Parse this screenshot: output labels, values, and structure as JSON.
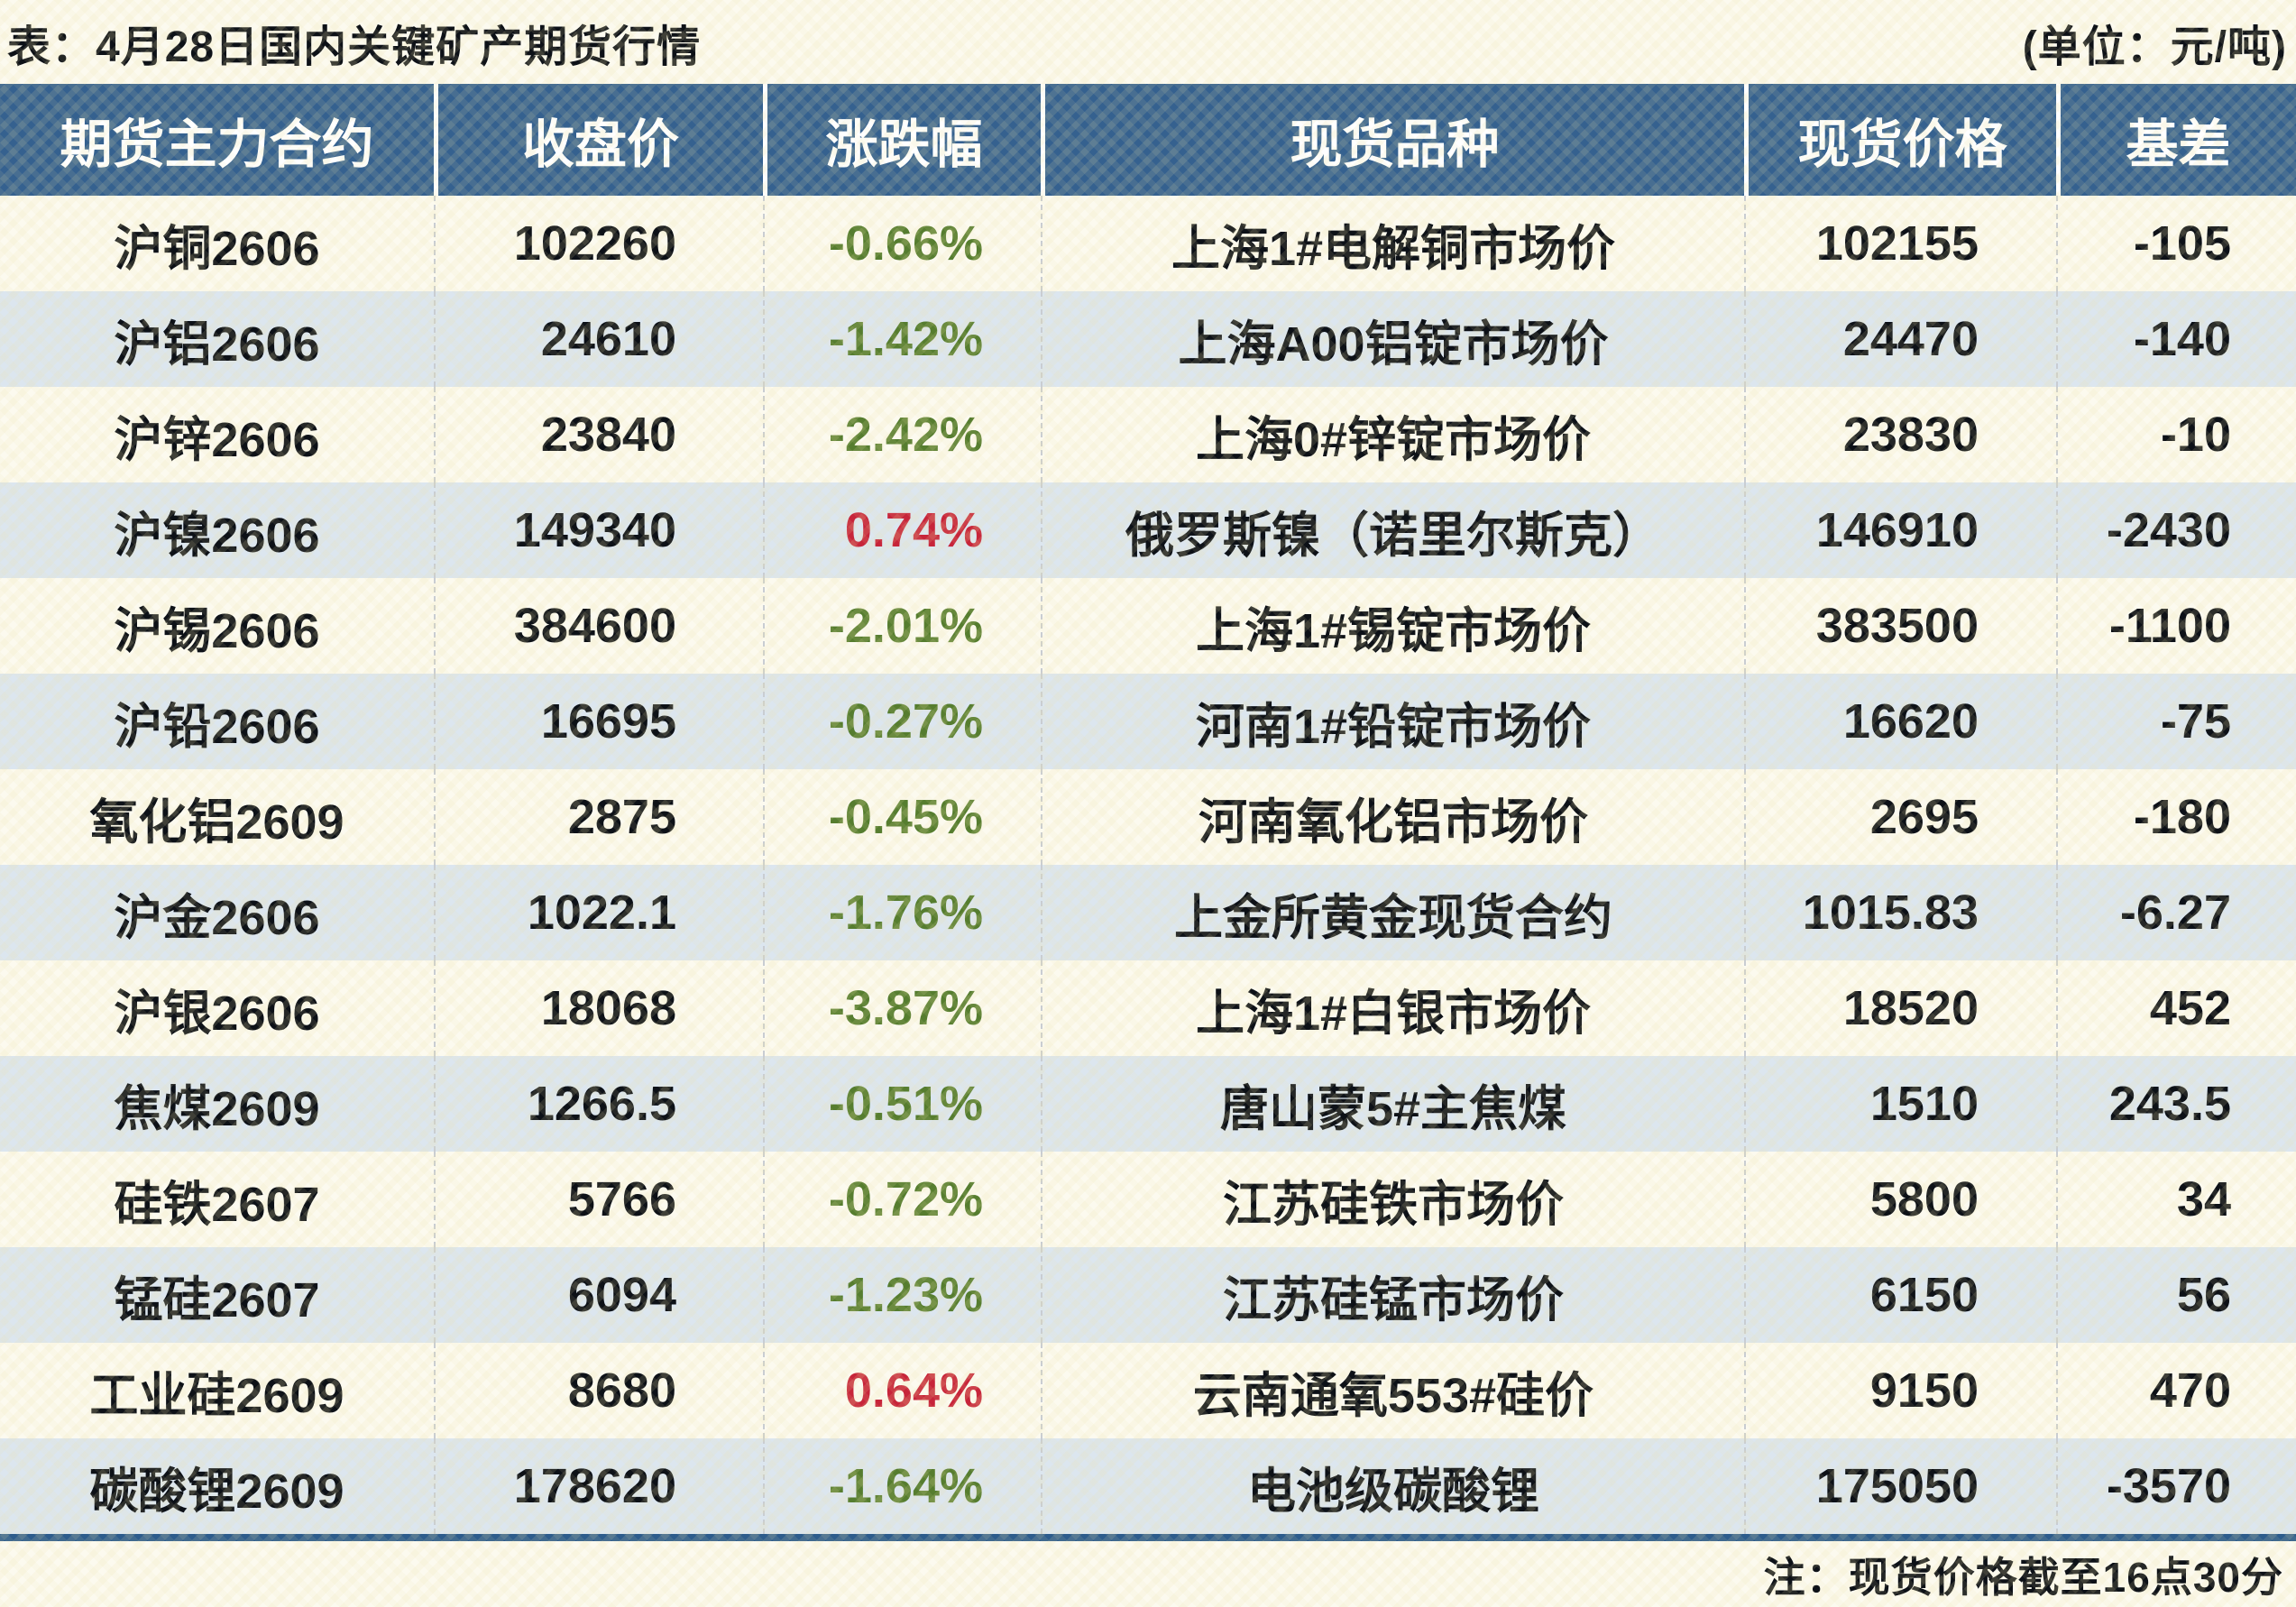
{
  "colors": {
    "page_bg": "#fcfaef",
    "header_bg": "#35618f",
    "row_stripe": "#dce6ef",
    "positive_red": "#c7253a",
    "negative_green": "#567d2f",
    "bottom_rule_blue": "#2d5c8c",
    "text": "#0d1117"
  },
  "chart_data": {
    "type": "table",
    "title": "表：4月28日国内关键矿产期货行情",
    "unit_label": "(单位：元/吨)",
    "footer_note": "注：现货价格截至16点30分",
    "columns": [
      "期货主力合约",
      "收盘价",
      "涨跌幅",
      "现货品种",
      "现货价格",
      "基差"
    ],
    "rows": [
      {
        "contract": "沪铜2606",
        "close": "102260",
        "change": "-0.66%",
        "direction": "down",
        "spot_item": "上海1#电解铜市场价",
        "spot_price": "102155",
        "basis": "-105"
      },
      {
        "contract": "沪铝2606",
        "close": "24610",
        "change": "-1.42%",
        "direction": "down",
        "spot_item": "上海A00铝锭市场价",
        "spot_price": "24470",
        "basis": "-140"
      },
      {
        "contract": "沪锌2606",
        "close": "23840",
        "change": "-2.42%",
        "direction": "down",
        "spot_item": "上海0#锌锭市场价",
        "spot_price": "23830",
        "basis": "-10"
      },
      {
        "contract": "沪镍2606",
        "close": "149340",
        "change": "0.74%",
        "direction": "up",
        "spot_item": "俄罗斯镍（诺里尔斯克）",
        "spot_price": "146910",
        "basis": "-2430"
      },
      {
        "contract": "沪锡2606",
        "close": "384600",
        "change": "-2.01%",
        "direction": "down",
        "spot_item": "上海1#锡锭市场价",
        "spot_price": "383500",
        "basis": "-1100"
      },
      {
        "contract": "沪铅2606",
        "close": "16695",
        "change": "-0.27%",
        "direction": "down",
        "spot_item": "河南1#铅锭市场价",
        "spot_price": "16620",
        "basis": "-75"
      },
      {
        "contract": "氧化铝2609",
        "close": "2875",
        "change": "-0.45%",
        "direction": "down",
        "spot_item": "河南氧化铝市场价",
        "spot_price": "2695",
        "basis": "-180"
      },
      {
        "contract": "沪金2606",
        "close": "1022.1",
        "change": "-1.76%",
        "direction": "down",
        "spot_item": "上金所黄金现货合约",
        "spot_price": "1015.83",
        "basis": "-6.27"
      },
      {
        "contract": "沪银2606",
        "close": "18068",
        "change": "-3.87%",
        "direction": "down",
        "spot_item": "上海1#白银市场价",
        "spot_price": "18520",
        "basis": "452"
      },
      {
        "contract": "焦煤2609",
        "close": "1266.5",
        "change": "-0.51%",
        "direction": "down",
        "spot_item": "唐山蒙5#主焦煤",
        "spot_price": "1510",
        "basis": "243.5"
      },
      {
        "contract": "硅铁2607",
        "close": "5766",
        "change": "-0.72%",
        "direction": "down",
        "spot_item": "江苏硅铁市场价",
        "spot_price": "5800",
        "basis": "34"
      },
      {
        "contract": "锰硅2607",
        "close": "6094",
        "change": "-1.23%",
        "direction": "down",
        "spot_item": "江苏硅锰市场价",
        "spot_price": "6150",
        "basis": "56"
      },
      {
        "contract": "工业硅2609",
        "close": "8680",
        "change": "0.64%",
        "direction": "up",
        "spot_item": "云南通氧553#硅价",
        "spot_price": "9150",
        "basis": "470"
      },
      {
        "contract": "碳酸锂2609",
        "close": "178620",
        "change": "-1.64%",
        "direction": "down",
        "spot_item": "电池级碳酸锂",
        "spot_price": "175050",
        "basis": "-3570"
      }
    ]
  }
}
